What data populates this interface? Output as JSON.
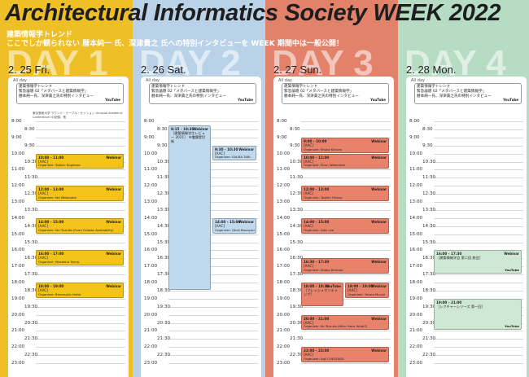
{
  "header": {
    "title": "Architectural Informatics Society WEEK 2022",
    "subtitle_line1": "建築情報学トレンド",
    "subtitle_line2": "ここでしか観られない 暦本純一 氏、深津貴之 氏への特別インタビューを WEEK 期間中は一般公開！"
  },
  "colors": {
    "day1": "#eebf26",
    "day2": "#b9d2e8",
    "day3": "#e2826b",
    "day4": "#b7dcc4",
    "ev_yellow": "#f3c31a",
    "ev_blue": "#c1d9ec",
    "ev_orange": "#e9826a",
    "ev_green": "#cfe8d5"
  },
  "all_day_label": "All day",
  "all_day_event": {
    "line1": "建築情報学トレンド",
    "line2": "緊急論壇 02「メタバースと建築情報学」",
    "line3": "暦本純一氏、深津貴之氏の特別インタビュー",
    "badge": "YouTube"
  },
  "day1_note": "東京藝術大学 ラウンド・テーブル・セッション Unusual Academic Conference! の記録、他",
  "time_labels": [
    "8:00",
    "8:30",
    "9:00",
    "9:30",
    "10:00",
    "10:30",
    "11:00",
    "11:30",
    "12:00",
    "12:30",
    "13:00",
    "13:30",
    "14:00",
    "14:30",
    "15:00",
    "15:30",
    "16:00",
    "16:30",
    "17:00",
    "17:30",
    "18:00",
    "18:30",
    "19:00",
    "19:30",
    "20:00",
    "20:30",
    "21:00",
    "21:30",
    "22:00",
    "22:30",
    "23:00"
  ],
  "days": [
    {
      "word": "DAY 1",
      "date": "2. 25 Fri.",
      "events": [
        {
          "start": 10,
          "end": 11,
          "color": "ev_yellow",
          "time": "10:00 - 11:00",
          "tag": "[AAC]",
          "web": "Webinar",
          "org": "Organizer: Satoru Sugihara"
        },
        {
          "start": 12,
          "end": 13,
          "color": "ev_yellow",
          "time": "12:00 - 13:00",
          "tag": "[AAC]",
          "web": "Webinar",
          "org": "Organizer: Kei Watanabe"
        },
        {
          "start": 14,
          "end": 15,
          "color": "ev_yellow",
          "time": "14:00 - 15:00",
          "tag": "[AAC]",
          "web": "Webinar",
          "org": "Organizer: Kei Tsuruta (Form Follows Availability)"
        },
        {
          "start": 16,
          "end": 17,
          "color": "ev_yellow",
          "time": "16:00 - 17:00",
          "tag": "[AAC]",
          "web": "Webinar",
          "org": "Organizer: Masahiro Tsima"
        },
        {
          "start": 18,
          "end": 19,
          "color": "ev_yellow",
          "time": "18:00 - 19:00",
          "tag": "[AAC]",
          "web": "Webinar",
          "org": "Organizer: Rinnosuke Hotta"
        }
      ]
    },
    {
      "word": "DAY 2",
      "date": "2. 26 Sat.",
      "events": [
        {
          "start": 8.25,
          "end": 18.5,
          "color": "ev_blue",
          "half": "left",
          "time": "8:15 - 18:30",
          "tag": "［建築情報学生レビュー 2021］ ※増課提切 新",
          "web": "Webinar",
          "org": ""
        },
        {
          "start": 9.5,
          "end": 10.5,
          "color": "ev_blue",
          "half": "right",
          "time": "9:30 - 10:30",
          "tag": "[AAC]",
          "web": "Webinar",
          "org": "Organizer: SALMA TABI"
        },
        {
          "start": 14,
          "end": 15,
          "color": "ev_blue",
          "half": "right",
          "time": "14:00 - 15:00",
          "tag": "[AAC]",
          "web": "Webinar",
          "org": "Organizer: Ghali Bouayad"
        }
      ]
    },
    {
      "word": "DAY 3",
      "date": "2. 27 Sun.",
      "events": [
        {
          "start": 9,
          "end": 10,
          "color": "ev_orange",
          "time": "9:00 - 10:00",
          "tag": "[AAC]",
          "web": "Webinar",
          "org": "Organizer: Shoko Kimura"
        },
        {
          "start": 10,
          "end": 11,
          "color": "ev_orange",
          "time": "10:00 - 11:00",
          "tag": "[AAC]",
          "web": "Webinar",
          "org": "Organizer: Shun Watanabe"
        },
        {
          "start": 12,
          "end": 13,
          "color": "ev_orange",
          "time": "12:00 - 13:00",
          "tag": "[AAC]",
          "web": "Webinar",
          "org": "Organizer: Toshiki Hirano"
        },
        {
          "start": 14,
          "end": 15,
          "color": "ev_orange",
          "time": "14:00 - 15:00",
          "tag": "[AAC]",
          "web": "Webinar",
          "org": "Organizer: Alric Lee"
        },
        {
          "start": 16.5,
          "end": 17.5,
          "color": "ev_orange",
          "time": "16:30 - 17:30",
          "tag": "[AAC]",
          "web": "Webinar",
          "org": "Organizer: Shoko Bemoto"
        },
        {
          "start": 18,
          "end": 19.5,
          "color": "ev_orange",
          "half": "left",
          "time": "18:00 - 19:30",
          "tag": "［フレッシュマンキャンプ］",
          "web": "YouTube",
          "org": ""
        },
        {
          "start": 18,
          "end": 19,
          "color": "ev_orange",
          "half": "right",
          "time": "18:00 - 19:00",
          "tag": "[AAC]",
          "web": "Webinar",
          "org": "Organizer: Yutaro Muraji"
        },
        {
          "start": 20,
          "end": 21,
          "color": "ev_orange",
          "time": "20:00 - 21:00",
          "tag": "[AAC]",
          "web": "Webinar",
          "org": "Organizer: Ko Tsuruta (Who Owns What?)"
        },
        {
          "start": 22,
          "end": 23,
          "color": "ev_orange",
          "time": "22:00 - 23:00",
          "tag": "[AAC]",
          "web": "Webinar",
          "org": "Organizer: Aqil CHEDDADI"
        }
      ]
    },
    {
      "word": "DAY 4",
      "date": "2. 28 Mon.",
      "events": [
        {
          "start": 16,
          "end": 17.5,
          "color": "ev_green",
          "time": "16:00 - 17:30",
          "tag": "［建築情報学会 第二回 総会］",
          "web": "Webinar",
          "org": "",
          "yt": "YouTube"
        },
        {
          "start": 19,
          "end": 21,
          "color": "ev_green",
          "time": "19:00 - 21:00",
          "tag": "［レクチャーシリーズ 第一回］",
          "web": "",
          "org": "",
          "yt": "YouTube"
        }
      ]
    }
  ]
}
